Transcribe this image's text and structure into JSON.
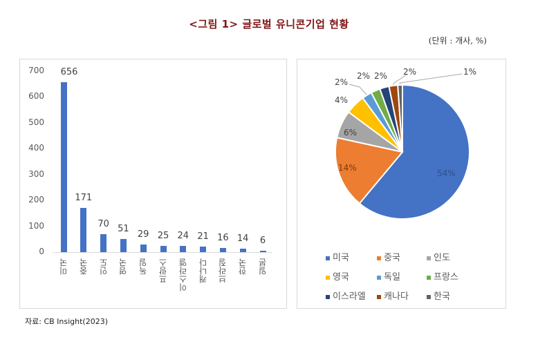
{
  "header": {
    "title": "<그림 1> 글로벌 유니콘기업 현황",
    "unit": "(단위 : 개사, %)"
  },
  "source": "자료: CB Insight(2023)",
  "colors": {
    "title": "#7f1416",
    "bar": "#4472c4",
    "pie": [
      "#4472c4",
      "#ed7d31",
      "#a5a5a5",
      "#ffc000",
      "#5b9bd5",
      "#70ad47",
      "#264478",
      "#9e480e",
      "#636363"
    ]
  },
  "chart_data": [
    {
      "type": "bar",
      "title": "",
      "xlabel": "",
      "ylabel": "",
      "categories": [
        "미국",
        "중국",
        "인도",
        "영국",
        "독일",
        "프랑스",
        "이스라엘",
        "캐나다",
        "브라질",
        "한국",
        "일본"
      ],
      "values": [
        656,
        171,
        70,
        51,
        29,
        25,
        24,
        21,
        16,
        14,
        6
      ],
      "value_labels": [
        "656",
        "171",
        "70",
        "51",
        "29",
        "25",
        "24",
        "21",
        "16",
        "14",
        "6"
      ],
      "yticks": [
        "700",
        "600",
        "500",
        "400",
        "300",
        "200",
        "100",
        "0"
      ],
      "ylim": [
        0,
        700
      ],
      "grid": false
    },
    {
      "type": "pie",
      "title": "",
      "categories": [
        "미국",
        "중국",
        "인도",
        "영국",
        "독일",
        "프랑스",
        "이스라엘",
        "캐나다",
        "한국"
      ],
      "values": [
        54,
        14,
        6,
        4,
        2,
        2,
        2,
        2,
        1
      ],
      "value_labels": [
        "54%",
        "14%",
        "6%",
        "4%",
        "2%",
        "2%",
        "2%",
        "2%",
        "1%"
      ],
      "legend_position": "bottom",
      "legend": [
        "미국",
        "중국",
        "인도",
        "영국",
        "독일",
        "프랑스",
        "이스라엘",
        "캐나다",
        "한국"
      ]
    }
  ]
}
